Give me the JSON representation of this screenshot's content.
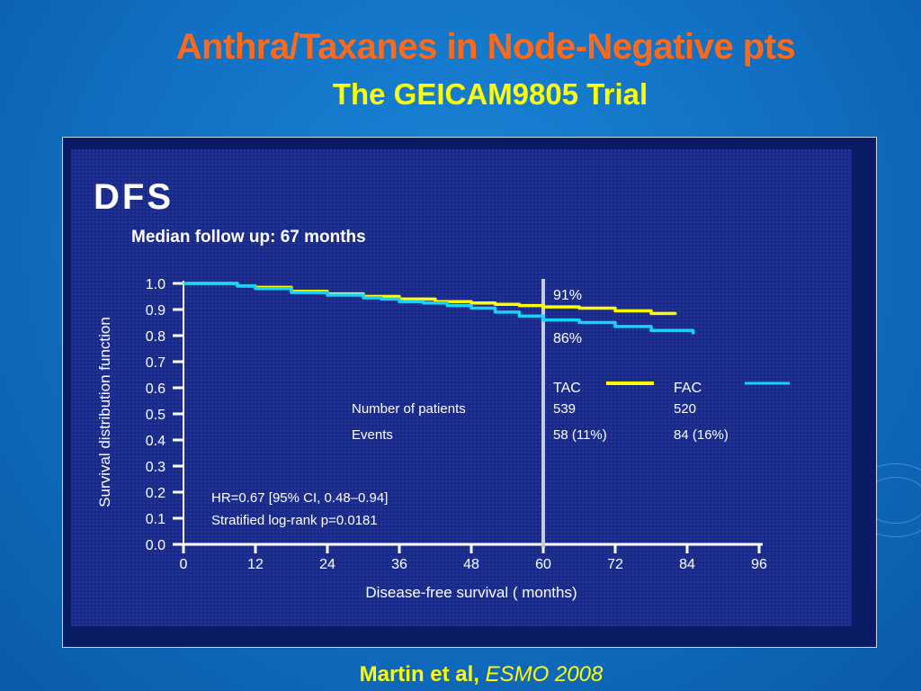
{
  "slide": {
    "title": "Anthra/Taxanes in Node-Negative pts",
    "subtitle": "The GEICAM9805 Trial",
    "citation_authors": "Martin et al,",
    "citation_venue": "ESMO 2008"
  },
  "colors": {
    "title": "#ff6a1a",
    "subtitle": "#ffff00",
    "panel": "#0b1b63",
    "tac": "#ffff00",
    "fac": "#1ad0ff"
  },
  "chart_data": {
    "type": "line",
    "title": "DFS",
    "subtitle": "Median follow up: 67 months",
    "xlabel": "Disease-free survival ( months)",
    "ylabel": "Survival distribution function",
    "xlim": [
      0,
      96
    ],
    "ylim": [
      0,
      1.0
    ],
    "x_ticks": [
      "0",
      "12",
      "24",
      "36",
      "48",
      "60",
      "72",
      "84",
      "96"
    ],
    "y_ticks": [
      "0.0",
      "0.1",
      "0.2",
      "0.3",
      "0.4",
      "0.5",
      "0.6",
      "0.7",
      "0.8",
      "0.9",
      "1.0"
    ],
    "grid": false,
    "series": [
      {
        "name": "TAC",
        "color": "#ffff00",
        "points": [
          [
            0,
            1.0
          ],
          [
            6,
            1.0
          ],
          [
            9,
            0.99
          ],
          [
            12,
            0.985
          ],
          [
            18,
            0.97
          ],
          [
            24,
            0.96
          ],
          [
            30,
            0.95
          ],
          [
            36,
            0.94
          ],
          [
            42,
            0.93
          ],
          [
            48,
            0.925
          ],
          [
            52,
            0.92
          ],
          [
            56,
            0.915
          ],
          [
            60,
            0.91
          ],
          [
            66,
            0.905
          ],
          [
            72,
            0.895
          ],
          [
            78,
            0.885
          ],
          [
            82,
            0.88
          ]
        ]
      },
      {
        "name": "FAC",
        "color": "#1ad0ff",
        "points": [
          [
            0,
            1.0
          ],
          [
            6,
            1.0
          ],
          [
            9,
            0.99
          ],
          [
            12,
            0.98
          ],
          [
            18,
            0.965
          ],
          [
            24,
            0.955
          ],
          [
            30,
            0.945
          ],
          [
            33,
            0.94
          ],
          [
            36,
            0.93
          ],
          [
            40,
            0.925
          ],
          [
            44,
            0.915
          ],
          [
            48,
            0.905
          ],
          [
            52,
            0.89
          ],
          [
            56,
            0.875
          ],
          [
            60,
            0.86
          ],
          [
            66,
            0.85
          ],
          [
            72,
            0.835
          ],
          [
            78,
            0.82
          ],
          [
            85,
            0.805
          ]
        ]
      }
    ],
    "annotations": {
      "marker_x": 60,
      "tac_label": "91%",
      "fac_label": "86%",
      "hr_line1": "HR=0.67 [95% CI, 0.48–0.94]",
      "hr_line2": "Stratified log-rank p=0.0181"
    },
    "table": {
      "arm1": "TAC",
      "arm2": "FAC",
      "row1_label": "Number of patients",
      "row1_arm1": "539",
      "row1_arm2": "520",
      "row2_label": "Events",
      "row2_arm1": "58 (11%)",
      "row2_arm2": "84 (16%)"
    }
  }
}
